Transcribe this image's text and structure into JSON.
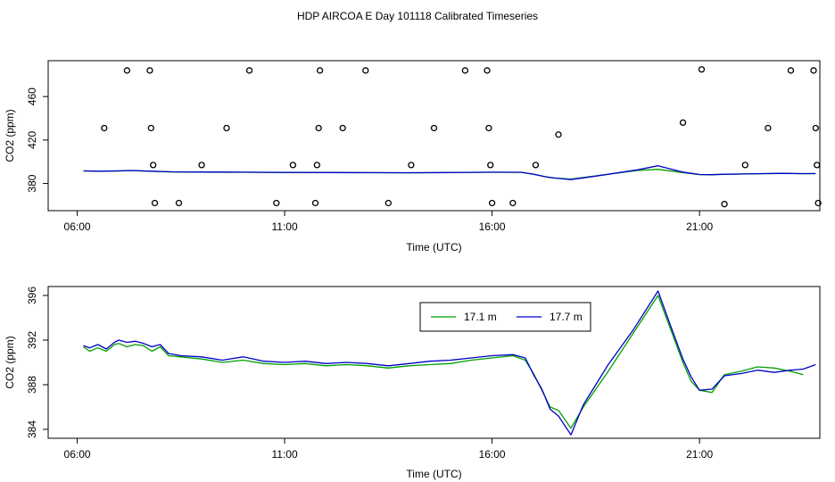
{
  "title": "HDP AIRCOA E  Day 101118  Calibrated Timeseries",
  "chart_data": [
    {
      "type": "scatter",
      "xlabel": "Time (UTC)",
      "ylabel": "CO2 (ppm)",
      "xlim": [
        5.3,
        23.9
      ],
      "ylim": [
        355,
        493
      ],
      "x_ticks": [
        6,
        11,
        16,
        21
      ],
      "x_tick_labels": [
        "06:00",
        "11:00",
        "16:00",
        "21:00"
      ],
      "y_ticks": [
        380,
        420,
        460
      ],
      "grid": false,
      "series": [
        {
          "style": "points",
          "color": "#000000",
          "marker": "circle-open",
          "x": [
            6.65,
            7.2,
            7.75,
            7.78,
            7.83,
            7.87,
            8.45,
            9.0,
            9.6,
            10.15,
            10.8,
            11.2,
            11.74,
            11.78,
            11.82,
            11.85,
            12.4,
            12.95,
            13.5,
            14.05,
            14.6,
            15.35,
            15.88,
            15.92,
            15.96,
            16.0,
            16.5,
            17.05,
            17.6,
            20.6,
            21.05,
            21.6,
            22.1,
            22.65,
            23.2,
            23.75,
            23.8,
            23.83,
            23.86
          ],
          "y": [
            431,
            484,
            484,
            431,
            397,
            362,
            362,
            397,
            431,
            484,
            362,
            397,
            362,
            397,
            431,
            484,
            431,
            484,
            362,
            397,
            431,
            484,
            484,
            431,
            397,
            362,
            362,
            397,
            425,
            436,
            485,
            361,
            397,
            431,
            484,
            484,
            431,
            397,
            362
          ]
        },
        {
          "style": "line",
          "color": "#00a000",
          "x": [
            6.15,
            6.5,
            7.0,
            7.3,
            7.8,
            8.3,
            9.0,
            10.0,
            11.0,
            12.0,
            13.0,
            14.0,
            15.0,
            16.0,
            16.7,
            17.0,
            17.3,
            17.5,
            17.9,
            18.5,
            19.5,
            20.0,
            20.6,
            21.0,
            21.3,
            21.5,
            22.0,
            22.5,
            23.0,
            23.5,
            23.8
          ],
          "y": [
            391.5,
            391.2,
            391.5,
            391.9,
            391.2,
            390.6,
            390.5,
            390.3,
            390.1,
            390.0,
            389.9,
            389.8,
            390.0,
            390.3,
            390.2,
            388.5,
            386.0,
            385.0,
            384.0,
            387.0,
            392.0,
            393.0,
            390.0,
            388.2,
            388.0,
            388.3,
            388.7,
            389.0,
            389.2,
            389.0,
            389.0
          ]
        },
        {
          "style": "line",
          "color": "#0000c8",
          "x": [
            6.15,
            6.5,
            7.0,
            7.3,
            7.8,
            8.3,
            9.0,
            10.0,
            11.0,
            12.0,
            13.0,
            14.0,
            15.0,
            16.0,
            16.7,
            17.0,
            17.3,
            17.5,
            17.9,
            18.5,
            19.5,
            20.0,
            20.6,
            21.0,
            21.3,
            21.5,
            22.0,
            22.5,
            23.0,
            23.5,
            23.8
          ],
          "y": [
            391.6,
            391.3,
            391.6,
            392.0,
            391.3,
            390.7,
            390.6,
            390.4,
            390.2,
            390.1,
            390.0,
            389.9,
            390.1,
            390.4,
            390.3,
            388.6,
            386.1,
            385.1,
            383.6,
            386.8,
            392.5,
            396.3,
            390.5,
            388.3,
            388.1,
            388.4,
            388.8,
            389.1,
            389.3,
            389.1,
            389.2
          ]
        }
      ]
    },
    {
      "type": "line",
      "xlabel": "Time (UTC)",
      "ylabel": "CO2 (ppm)",
      "xlim": [
        5.3,
        23.9
      ],
      "ylim": [
        383.2,
        396.8
      ],
      "x_ticks": [
        6,
        11,
        16,
        21
      ],
      "x_tick_labels": [
        "06:00",
        "11:00",
        "16:00",
        "21:00"
      ],
      "y_ticks": [
        384,
        388,
        392,
        396
      ],
      "grid": false,
      "legend": {
        "position": "top-right",
        "entries": [
          "17.1 m",
          "17.7 m"
        ]
      },
      "series": [
        {
          "name": "17.1 m",
          "color": "#00a000",
          "x": [
            6.15,
            6.3,
            6.5,
            6.7,
            6.9,
            7.0,
            7.2,
            7.4,
            7.6,
            7.8,
            8.0,
            8.2,
            8.5,
            9.0,
            9.5,
            10.0,
            10.5,
            11.0,
            11.5,
            12.0,
            12.5,
            13.0,
            13.5,
            14.0,
            14.5,
            15.0,
            15.5,
            16.0,
            16.5,
            16.8,
            17.0,
            17.2,
            17.4,
            17.6,
            17.9,
            18.2,
            18.8,
            19.4,
            20.0,
            20.3,
            20.6,
            20.8,
            21.0,
            21.3,
            21.6,
            22.0,
            22.4,
            22.8,
            23.2,
            23.5
          ],
          "y": [
            391.4,
            391.0,
            391.3,
            391.0,
            391.6,
            391.7,
            391.4,
            391.6,
            391.5,
            391.0,
            391.4,
            390.6,
            390.5,
            390.3,
            390.0,
            390.2,
            389.9,
            389.8,
            389.9,
            389.7,
            389.8,
            389.7,
            389.5,
            389.7,
            389.8,
            389.9,
            390.2,
            390.4,
            390.6,
            390.2,
            389.0,
            387.5,
            386.0,
            385.7,
            384.1,
            386.0,
            389.2,
            392.6,
            396.0,
            393.0,
            390.0,
            388.3,
            387.5,
            387.3,
            388.9,
            389.2,
            389.6,
            389.5,
            389.2,
            388.9
          ]
        },
        {
          "name": "17.7 m",
          "color": "#0000c8",
          "x": [
            6.15,
            6.3,
            6.5,
            6.7,
            6.9,
            7.0,
            7.2,
            7.4,
            7.6,
            7.8,
            8.0,
            8.2,
            8.5,
            9.0,
            9.5,
            10.0,
            10.5,
            11.0,
            11.5,
            12.0,
            12.5,
            13.0,
            13.5,
            14.0,
            14.5,
            15.0,
            15.5,
            16.0,
            16.5,
            16.8,
            17.0,
            17.2,
            17.4,
            17.6,
            17.9,
            18.2,
            18.8,
            19.4,
            20.0,
            20.3,
            20.6,
            20.8,
            21.0,
            21.3,
            21.6,
            22.0,
            22.4,
            22.8,
            23.2,
            23.5,
            23.8
          ],
          "y": [
            391.5,
            391.3,
            391.6,
            391.2,
            391.8,
            392.0,
            391.8,
            391.9,
            391.7,
            391.4,
            391.6,
            390.8,
            390.6,
            390.5,
            390.2,
            390.5,
            390.1,
            390.0,
            390.1,
            389.9,
            390.0,
            389.9,
            389.7,
            389.9,
            390.1,
            390.2,
            390.4,
            390.6,
            390.7,
            390.4,
            388.9,
            387.6,
            385.8,
            385.2,
            383.5,
            386.2,
            389.8,
            392.9,
            396.4,
            393.3,
            390.3,
            388.7,
            387.5,
            387.6,
            388.8,
            389.0,
            389.3,
            389.1,
            389.3,
            389.4,
            389.8
          ]
        }
      ]
    }
  ]
}
